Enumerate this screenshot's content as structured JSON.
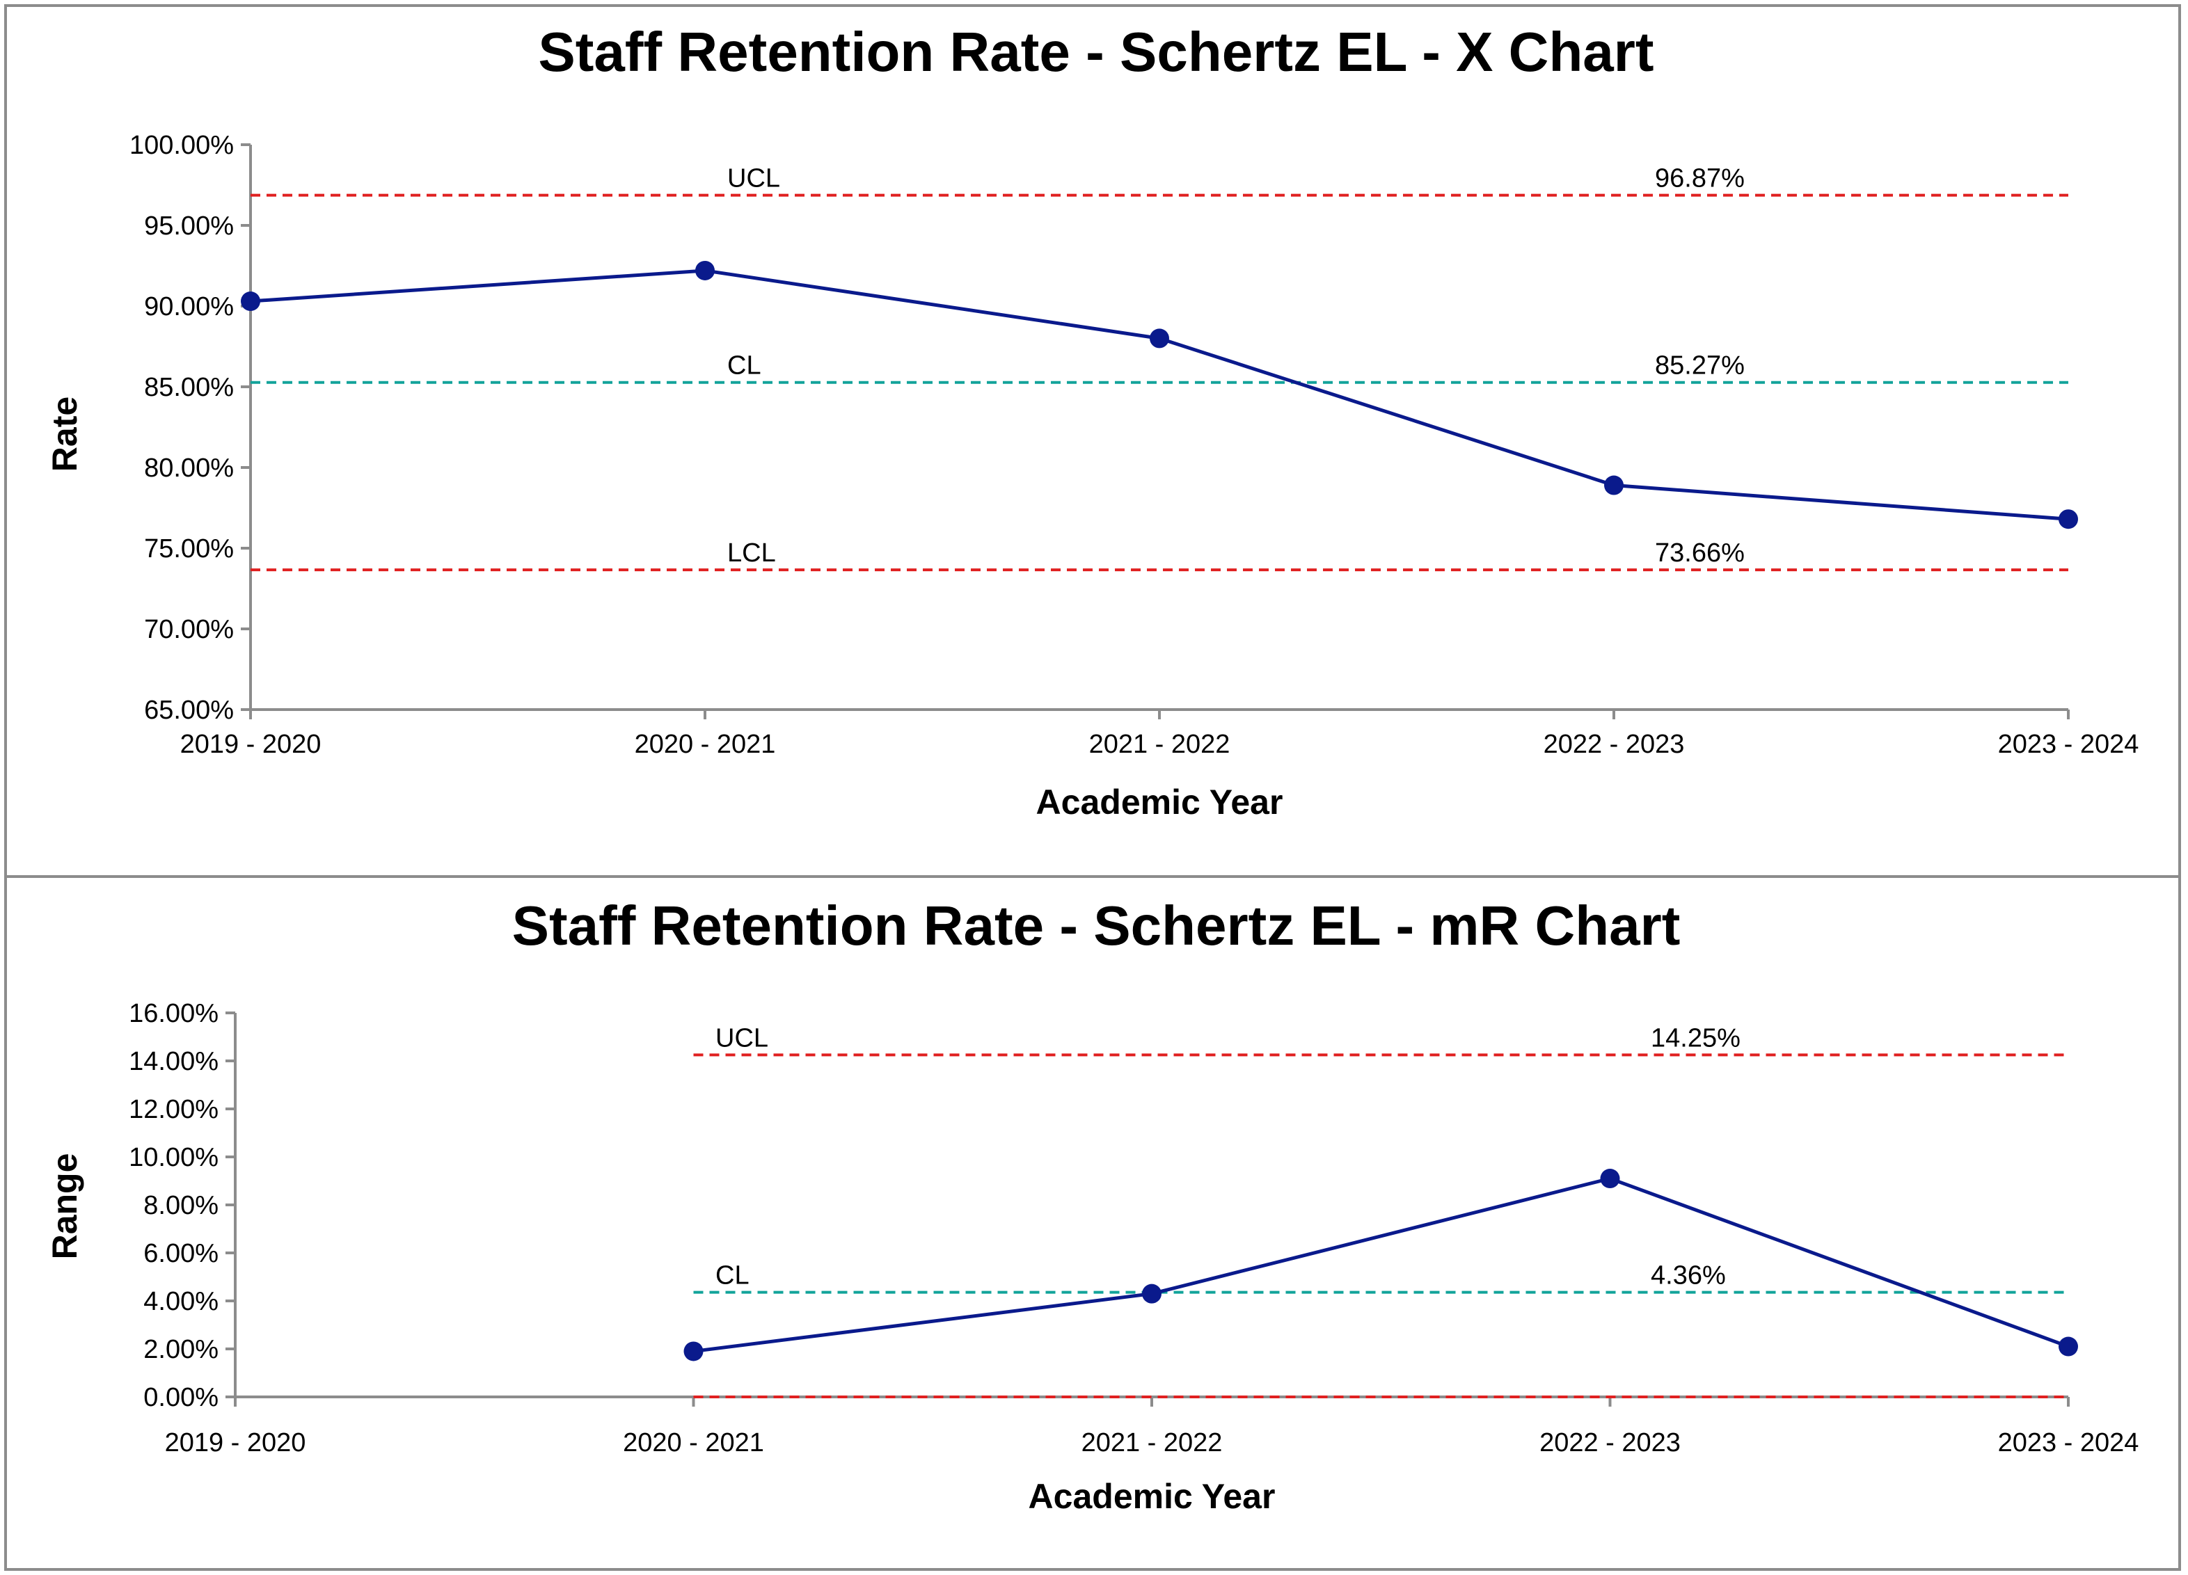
{
  "chart_data": [
    {
      "type": "line",
      "title": "Staff Retention Rate - Schertz EL - X Chart",
      "xlabel": "Academic Year",
      "ylabel": "Rate",
      "categories": [
        "2019 - 2020",
        "2020 - 2021",
        "2021 - 2022",
        "2022 - 2023",
        "2023 - 2024"
      ],
      "yticks": [
        "65.00%",
        "70.00%",
        "75.00%",
        "80.00%",
        "85.00%",
        "90.00%",
        "95.00%",
        "100.00%"
      ],
      "ylim": [
        65,
        100
      ],
      "series": [
        {
          "values": [
            90.3,
            92.2,
            88.0,
            78.9,
            76.8
          ]
        }
      ],
      "limits": [
        {
          "label": "UCL",
          "value": 96.87,
          "value_text": "96.87%",
          "color": "#e02020"
        },
        {
          "label": "CL",
          "value": 85.27,
          "value_text": "85.27%",
          "color": "#12a39a"
        },
        {
          "label": "LCL",
          "value": 73.66,
          "value_text": "73.66%",
          "color": "#e02020"
        }
      ],
      "line_color": "#0a1a8c",
      "grid": false
    },
    {
      "type": "line",
      "title": "Staff Retention Rate - Schertz EL - mR Chart",
      "xlabel": "Academic Year",
      "ylabel": "Range",
      "categories": [
        "2019 - 2020",
        "2020 - 2021",
        "2021 - 2022",
        "2022 - 2023",
        "2023 - 2024"
      ],
      "yticks": [
        "0.00%",
        "2.00%",
        "4.00%",
        "6.00%",
        "8.00%",
        "10.00%",
        "12.00%",
        "14.00%",
        "16.00%"
      ],
      "ylim": [
        0,
        16
      ],
      "series": [
        {
          "values": [
            null,
            1.9,
            4.3,
            9.1,
            2.1
          ]
        }
      ],
      "limits": [
        {
          "label": "UCL",
          "value": 14.25,
          "value_text": "14.25%",
          "color": "#e02020"
        },
        {
          "label": "CL",
          "value": 4.36,
          "value_text": "4.36%",
          "color": "#12a39a"
        },
        {
          "label": "",
          "value": 0,
          "value_text": "",
          "color": "#e02020"
        }
      ],
      "line_color": "#0a1a8c",
      "grid": false
    }
  ]
}
